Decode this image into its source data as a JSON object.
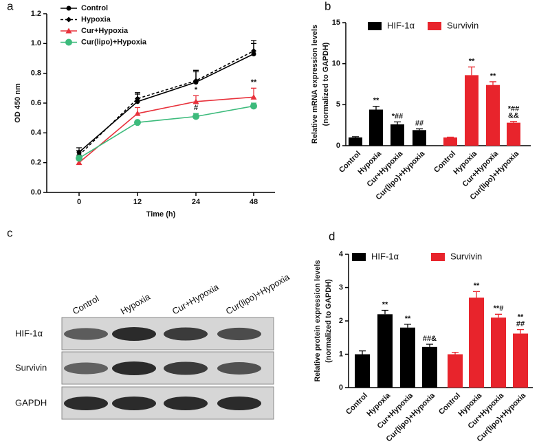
{
  "chart_data": [
    {
      "type": "line",
      "panel": "a",
      "xlabel": "Time (h)",
      "ylabel": [
        "OD 450 nm"
      ],
      "categories": [
        "0",
        "12",
        "24",
        "48"
      ],
      "ylim": [
        0,
        1.2
      ],
      "yticks": [
        {
          "value": 0,
          "label": "0.0"
        },
        0.2,
        0.4,
        0.6,
        0.8,
        {
          "value": 1,
          "label": "1.0"
        },
        1.2
      ],
      "series": [
        {
          "name": "Control",
          "color": "#000000",
          "marker": "circle",
          "dash": false,
          "values": [
            0.27,
            0.61,
            0.74,
            0.93
          ],
          "errors": [
            0.03,
            0.05,
            0.07,
            0.07
          ],
          "significance": [
            null,
            null,
            null,
            null
          ]
        },
        {
          "name": "Hypoxia",
          "color": "#000000",
          "marker": "diamond",
          "dash": true,
          "values": [
            0.25,
            0.63,
            0.75,
            0.95
          ],
          "errors": [
            0.03,
            0.04,
            0.07,
            0.07
          ],
          "significance": [
            null,
            null,
            null,
            null
          ]
        },
        {
          "name": "Cur+Hypoxia",
          "color": "#e8323c",
          "marker": "triangle",
          "dash": false,
          "values": [
            0.2,
            0.53,
            0.61,
            0.64
          ],
          "errors": [
            0.02,
            0.04,
            0.04,
            0.06
          ],
          "significance": [
            null,
            null,
            "*",
            "**"
          ]
        },
        {
          "name": "Cur(lipo)+Hypoxia",
          "color": "#3dbb7c",
          "marker": "bigcircle",
          "dash": false,
          "values": [
            0.23,
            0.47,
            0.51,
            0.58
          ],
          "errors": [
            0.01,
            0.01,
            0.02,
            0.02
          ],
          "significance": [
            null,
            null,
            "#",
            null
          ]
        }
      ]
    },
    {
      "type": "bar",
      "panel": "b",
      "ylabel": [
        "Relative mRNA expression levels",
        "(normalized to GAPDH)"
      ],
      "categories": [
        "Control",
        "Hypoxia",
        "Cur+Hypoxia",
        "Cur(lipo)+Hypoxia"
      ],
      "ylim": [
        0,
        15
      ],
      "yticks": [
        0,
        5,
        10,
        15
      ],
      "series": [
        {
          "name": "HIF-1α",
          "color": "#000000",
          "values": [
            1.0,
            4.4,
            2.6,
            1.9
          ],
          "errors": [
            0.1,
            0.4,
            0.3,
            0.15
          ],
          "significance": [
            null,
            "**",
            "*##",
            "##"
          ]
        },
        {
          "name": "Survivin",
          "color": "#e8242c",
          "values": [
            1.0,
            8.6,
            7.4,
            2.8
          ],
          "errors": [
            0.05,
            1.0,
            0.4,
            0.15
          ],
          "significance": [
            null,
            "**",
            "**",
            [
              "*##",
              "&&"
            ]
          ]
        }
      ]
    },
    {
      "type": "bar",
      "panel": "d",
      "ylabel": [
        "Relative protein expression levels",
        "(normalized to GAPDH)"
      ],
      "categories": [
        "Control",
        "Hypoxia",
        "Cur+Hypoxia",
        "Cur(lipo)+Hypoxia"
      ],
      "ylim": [
        0,
        4
      ],
      "yticks": [
        0,
        1,
        2,
        3,
        4
      ],
      "series": [
        {
          "name": "HIF-1α",
          "color": "#000000",
          "values": [
            1.0,
            2.2,
            1.8,
            1.22
          ],
          "errors": [
            0.1,
            0.12,
            0.1,
            0.08
          ],
          "significance": [
            null,
            "**",
            "**",
            "##&"
          ]
        },
        {
          "name": "Survivin",
          "color": "#e8242c",
          "values": [
            1.0,
            2.7,
            2.1,
            1.62
          ],
          "errors": [
            0.06,
            0.18,
            0.1,
            0.12
          ],
          "significance": [
            null,
            "**",
            "**#",
            [
              "**",
              "##"
            ]
          ]
        }
      ]
    }
  ],
  "blot": {
    "panel": "c",
    "lanes": [
      "Control",
      "Hypoxia",
      "Cur+Hypoxia",
      "Cur(lipo)+Hypoxia"
    ],
    "rows": [
      "HIF-1α",
      "Survivin",
      "GAPDH"
    ]
  }
}
